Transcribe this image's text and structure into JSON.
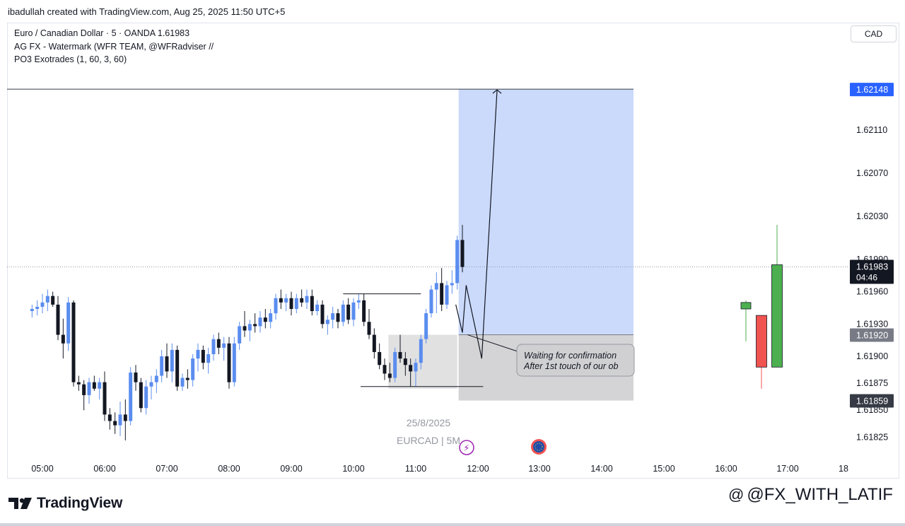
{
  "header": {
    "created_by": "ibadullah created with TradingView.com, Aug 25, 2025 11:50 UTC+5"
  },
  "legend": {
    "symbol_line": "Euro / Canadian Dollar · 5 · OANDA  1.61983",
    "indicator1": "AG FX - Watermark (WFR TEAM, @WFRadviser // ",
    "indicator2": "PO3 Exotrades (1, 60, 3, 60)"
  },
  "currency_button": "CAD",
  "footer": {
    "logo_text": "TradingView",
    "watermark": "@FX_WITH_LATIF"
  },
  "chart_data": {
    "type": "candlestick",
    "symbol": "EURCAD",
    "timeframe": "5",
    "broker": "OANDA",
    "last_price": "1.61983",
    "countdown": "04:46",
    "center_watermark_date": "25/8/2025",
    "center_watermark_symbol": "EURCAD | 5M",
    "y_ticks": [
      1.6211,
      1.6207,
      1.6203,
      1.6199,
      1.6196,
      1.6193,
      1.619,
      1.61875,
      1.6185,
      1.61825
    ],
    "y_tick_labels": [
      "1.62110",
      "1.62070",
      "1.62030",
      "1.61990",
      "1.61960",
      "1.61930",
      "1.61900",
      "1.61875",
      "1.61850",
      "1.61825"
    ],
    "x_ticks": [
      "05:00",
      "06:00",
      "07:00",
      "08:00",
      "09:00",
      "10:00",
      "11:00",
      "12:00",
      "13:00",
      "14:00",
      "15:00",
      "16:00",
      "17:00",
      "18"
    ],
    "price_labels": [
      {
        "value": "1.62148",
        "color": "#2962ff"
      },
      {
        "value": "1.61983",
        "color": "#131722"
      },
      {
        "value": "1.61920",
        "color": "#787b86"
      },
      {
        "value": "1.61859",
        "color": "#363a45"
      }
    ],
    "annotation": {
      "line1": "Waiting for confirmation",
      "line2": "After 1st touch of our ob"
    },
    "position": {
      "type": "long",
      "target": 1.62148,
      "entry": 1.6192,
      "stop": 1.61859,
      "start_time": "11:40",
      "end_time": "14:30"
    },
    "order_block": {
      "top": 1.6192,
      "bottom": 1.6187,
      "start_time": "10:35",
      "end_time": "11:40"
    },
    "candles": [
      {
        "t": "04:50",
        "o": 1.61942,
        "h": 1.61948,
        "l": 1.61936,
        "c": 1.61944
      },
      {
        "t": "04:55",
        "o": 1.61944,
        "h": 1.61952,
        "l": 1.61938,
        "c": 1.61946
      },
      {
        "t": "05:00",
        "o": 1.61946,
        "h": 1.61958,
        "l": 1.6194,
        "c": 1.6195
      },
      {
        "t": "05:05",
        "o": 1.6195,
        "h": 1.61962,
        "l": 1.61942,
        "c": 1.61956
      },
      {
        "t": "05:10",
        "o": 1.61956,
        "h": 1.6196,
        "l": 1.61946,
        "c": 1.61948
      },
      {
        "t": "05:15",
        "o": 1.61948,
        "h": 1.61956,
        "l": 1.61915,
        "c": 1.6192
      },
      {
        "t": "05:20",
        "o": 1.6192,
        "h": 1.61935,
        "l": 1.61898,
        "c": 1.61912
      },
      {
        "t": "05:25",
        "o": 1.61912,
        "h": 1.61955,
        "l": 1.61905,
        "c": 1.6195
      },
      {
        "t": "05:30",
        "o": 1.6195,
        "h": 1.61952,
        "l": 1.61872,
        "c": 1.61876
      },
      {
        "t": "05:35",
        "o": 1.61876,
        "h": 1.61882,
        "l": 1.61868,
        "c": 1.61874
      },
      {
        "t": "05:40",
        "o": 1.61874,
        "h": 1.61878,
        "l": 1.6185,
        "c": 1.61864
      },
      {
        "t": "05:45",
        "o": 1.61864,
        "h": 1.6188,
        "l": 1.61856,
        "c": 1.61876
      },
      {
        "t": "05:50",
        "o": 1.61876,
        "h": 1.61882,
        "l": 1.61868,
        "c": 1.6187
      },
      {
        "t": "05:55",
        "o": 1.6187,
        "h": 1.6188,
        "l": 1.6186,
        "c": 1.61876
      },
      {
        "t": "06:00",
        "o": 1.61876,
        "h": 1.61886,
        "l": 1.6184,
        "c": 1.61846
      },
      {
        "t": "06:05",
        "o": 1.61846,
        "h": 1.61852,
        "l": 1.61832,
        "c": 1.6184
      },
      {
        "t": "06:10",
        "o": 1.6184,
        "h": 1.61848,
        "l": 1.61828,
        "c": 1.61836
      },
      {
        "t": "06:15",
        "o": 1.61836,
        "h": 1.61858,
        "l": 1.61826,
        "c": 1.61846
      },
      {
        "t": "06:20",
        "o": 1.61846,
        "h": 1.6186,
        "l": 1.61822,
        "c": 1.6184
      },
      {
        "t": "06:25",
        "o": 1.6184,
        "h": 1.6189,
        "l": 1.61836,
        "c": 1.61885
      },
      {
        "t": "06:30",
        "o": 1.61885,
        "h": 1.61892,
        "l": 1.61868,
        "c": 1.61876
      },
      {
        "t": "06:35",
        "o": 1.61876,
        "h": 1.6188,
        "l": 1.61848,
        "c": 1.61852
      },
      {
        "t": "06:40",
        "o": 1.61852,
        "h": 1.61878,
        "l": 1.61846,
        "c": 1.61872
      },
      {
        "t": "06:45",
        "o": 1.61872,
        "h": 1.61882,
        "l": 1.6186,
        "c": 1.61876
      },
      {
        "t": "06:50",
        "o": 1.61876,
        "h": 1.61888,
        "l": 1.61866,
        "c": 1.61882
      },
      {
        "t": "06:55",
        "o": 1.61882,
        "h": 1.61906,
        "l": 1.61876,
        "c": 1.619
      },
      {
        "t": "07:00",
        "o": 1.619,
        "h": 1.61912,
        "l": 1.6188,
        "c": 1.61886
      },
      {
        "t": "07:05",
        "o": 1.61886,
        "h": 1.61912,
        "l": 1.61876,
        "c": 1.61906
      },
      {
        "t": "07:10",
        "o": 1.61906,
        "h": 1.6191,
        "l": 1.61868,
        "c": 1.61872
      },
      {
        "t": "07:15",
        "o": 1.61872,
        "h": 1.61884,
        "l": 1.61868,
        "c": 1.6188
      },
      {
        "t": "07:20",
        "o": 1.6188,
        "h": 1.61888,
        "l": 1.6187,
        "c": 1.61878
      },
      {
        "t": "07:25",
        "o": 1.61878,
        "h": 1.61902,
        "l": 1.61872,
        "c": 1.61898
      },
      {
        "t": "07:30",
        "o": 1.61898,
        "h": 1.61912,
        "l": 1.61886,
        "c": 1.61906
      },
      {
        "t": "07:35",
        "o": 1.61906,
        "h": 1.6191,
        "l": 1.61888,
        "c": 1.61894
      },
      {
        "t": "07:40",
        "o": 1.61894,
        "h": 1.61908,
        "l": 1.61884,
        "c": 1.61902
      },
      {
        "t": "07:45",
        "o": 1.61902,
        "h": 1.6192,
        "l": 1.61896,
        "c": 1.61916
      },
      {
        "t": "07:50",
        "o": 1.61916,
        "h": 1.61922,
        "l": 1.61902,
        "c": 1.61908
      },
      {
        "t": "07:55",
        "o": 1.61908,
        "h": 1.61918,
        "l": 1.61896,
        "c": 1.61912
      },
      {
        "t": "08:00",
        "o": 1.61912,
        "h": 1.61918,
        "l": 1.6187,
        "c": 1.61876
      },
      {
        "t": "08:05",
        "o": 1.61876,
        "h": 1.61918,
        "l": 1.61872,
        "c": 1.61912
      },
      {
        "t": "08:10",
        "o": 1.61912,
        "h": 1.61932,
        "l": 1.61906,
        "c": 1.61928
      },
      {
        "t": "08:15",
        "o": 1.61928,
        "h": 1.61942,
        "l": 1.61918,
        "c": 1.61924
      },
      {
        "t": "08:20",
        "o": 1.61924,
        "h": 1.61934,
        "l": 1.61914,
        "c": 1.6193
      },
      {
        "t": "08:25",
        "o": 1.6193,
        "h": 1.6194,
        "l": 1.61922,
        "c": 1.61928
      },
      {
        "t": "08:30",
        "o": 1.61928,
        "h": 1.61942,
        "l": 1.61922,
        "c": 1.61936
      },
      {
        "t": "08:35",
        "o": 1.61936,
        "h": 1.61944,
        "l": 1.61926,
        "c": 1.61932
      },
      {
        "t": "08:40",
        "o": 1.61932,
        "h": 1.61944,
        "l": 1.61926,
        "c": 1.6194
      },
      {
        "t": "08:45",
        "o": 1.6194,
        "h": 1.61958,
        "l": 1.61934,
        "c": 1.61954
      },
      {
        "t": "08:50",
        "o": 1.61954,
        "h": 1.61962,
        "l": 1.61944,
        "c": 1.6195
      },
      {
        "t": "08:55",
        "o": 1.6195,
        "h": 1.61958,
        "l": 1.61942,
        "c": 1.61954
      },
      {
        "t": "09:00",
        "o": 1.61954,
        "h": 1.6196,
        "l": 1.61938,
        "c": 1.61944
      },
      {
        "t": "09:05",
        "o": 1.61944,
        "h": 1.61958,
        "l": 1.6194,
        "c": 1.61954
      },
      {
        "t": "09:10",
        "o": 1.61954,
        "h": 1.61962,
        "l": 1.61946,
        "c": 1.6195
      },
      {
        "t": "09:15",
        "o": 1.6195,
        "h": 1.61962,
        "l": 1.61944,
        "c": 1.61956
      },
      {
        "t": "09:20",
        "o": 1.61956,
        "h": 1.61962,
        "l": 1.61938,
        "c": 1.61942
      },
      {
        "t": "09:25",
        "o": 1.61942,
        "h": 1.61952,
        "l": 1.61938,
        "c": 1.61948
      },
      {
        "t": "09:30",
        "o": 1.61948,
        "h": 1.61952,
        "l": 1.61926,
        "c": 1.6193
      },
      {
        "t": "09:35",
        "o": 1.6193,
        "h": 1.61938,
        "l": 1.6192,
        "c": 1.61934
      },
      {
        "t": "09:40",
        "o": 1.61934,
        "h": 1.61946,
        "l": 1.61926,
        "c": 1.6194
      },
      {
        "t": "09:45",
        "o": 1.6194,
        "h": 1.61944,
        "l": 1.61926,
        "c": 1.61932
      },
      {
        "t": "09:50",
        "o": 1.61932,
        "h": 1.61952,
        "l": 1.61928,
        "c": 1.61948
      },
      {
        "t": "09:55",
        "o": 1.61948,
        "h": 1.61954,
        "l": 1.6193,
        "c": 1.61934
      },
      {
        "t": "10:00",
        "o": 1.61934,
        "h": 1.61954,
        "l": 1.61928,
        "c": 1.6195
      },
      {
        "t": "10:05",
        "o": 1.6195,
        "h": 1.61958,
        "l": 1.61944,
        "c": 1.61952
      },
      {
        "t": "10:10",
        "o": 1.61952,
        "h": 1.61958,
        "l": 1.61928,
        "c": 1.61932
      },
      {
        "t": "10:15",
        "o": 1.61932,
        "h": 1.61944,
        "l": 1.61916,
        "c": 1.6192
      },
      {
        "t": "10:20",
        "o": 1.6192,
        "h": 1.61926,
        "l": 1.61898,
        "c": 1.61904
      },
      {
        "t": "10:25",
        "o": 1.61904,
        "h": 1.61912,
        "l": 1.61888,
        "c": 1.61892
      },
      {
        "t": "10:30",
        "o": 1.61892,
        "h": 1.61898,
        "l": 1.61878,
        "c": 1.61884
      },
      {
        "t": "10:35",
        "o": 1.61884,
        "h": 1.61894,
        "l": 1.61876,
        "c": 1.6188
      },
      {
        "t": "10:40",
        "o": 1.6188,
        "h": 1.61908,
        "l": 1.61876,
        "c": 1.61904
      },
      {
        "t": "10:45",
        "o": 1.61904,
        "h": 1.6192,
        "l": 1.61894,
        "c": 1.61898
      },
      {
        "t": "10:50",
        "o": 1.61898,
        "h": 1.61904,
        "l": 1.61882,
        "c": 1.61892
      },
      {
        "t": "10:55",
        "o": 1.61892,
        "h": 1.61898,
        "l": 1.61872,
        "c": 1.61886
      },
      {
        "t": "11:00",
        "o": 1.61886,
        "h": 1.61898,
        "l": 1.61872,
        "c": 1.61894
      },
      {
        "t": "11:05",
        "o": 1.61894,
        "h": 1.6192,
        "l": 1.61888,
        "c": 1.61916
      },
      {
        "t": "11:10",
        "o": 1.61916,
        "h": 1.61944,
        "l": 1.61912,
        "c": 1.6194
      },
      {
        "t": "11:15",
        "o": 1.6194,
        "h": 1.61966,
        "l": 1.61936,
        "c": 1.61962
      },
      {
        "t": "11:20",
        "o": 1.61962,
        "h": 1.61978,
        "l": 1.6194,
        "c": 1.61968
      },
      {
        "t": "11:25",
        "o": 1.61968,
        "h": 1.61982,
        "l": 1.61942,
        "c": 1.61948
      },
      {
        "t": "11:30",
        "o": 1.61948,
        "h": 1.6197,
        "l": 1.61944,
        "c": 1.61966
      },
      {
        "t": "11:35",
        "o": 1.61966,
        "h": 1.6198,
        "l": 1.61958,
        "c": 1.61968
      },
      {
        "t": "11:40",
        "o": 1.61968,
        "h": 1.62012,
        "l": 1.61962,
        "c": 1.62008
      },
      {
        "t": "11:45",
        "o": 1.62008,
        "h": 1.62022,
        "l": 1.61978,
        "c": 1.61983
      }
    ],
    "right_candles": [
      {
        "o": 1.61944,
        "h": 1.61952,
        "l": 1.61914,
        "c": 1.6195
      },
      {
        "o": 1.61938,
        "h": 1.61938,
        "l": 1.6187,
        "c": 1.6189
      },
      {
        "o": 1.6189,
        "h": 1.62022,
        "l": 1.6189,
        "c": 1.61985
      }
    ]
  }
}
